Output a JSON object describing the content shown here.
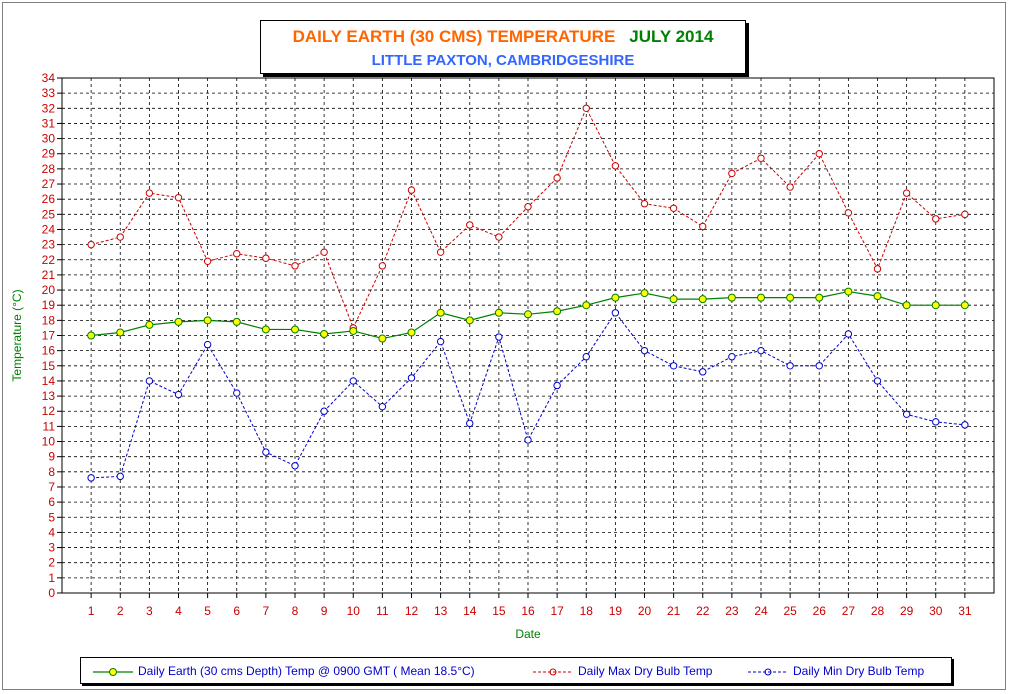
{
  "title": {
    "main": "DAILY EARTH (30 CMS) TEMPERATURE",
    "date": "JULY 2014",
    "subtitle": "LITTLE PAXTON, CAMBRIDGESHIRE"
  },
  "colors": {
    "title_main": "#ff6600",
    "title_date": "#008000",
    "subtitle": "#3366ff",
    "axis_text": "#cc0000",
    "axis_title": "#008000",
    "earth_line": "#008000",
    "earth_marker": "#ffff00",
    "max_line": "#cc0000",
    "min_line": "#0000cc"
  },
  "legend": {
    "earth": "Daily Earth (30 cms Depth) Temp @ 0900 GMT ( Mean 18.5°C)",
    "max": "Daily Max Dry Bulb Temp",
    "min": "Daily Min Dry Bulb Temp"
  },
  "chart_data": {
    "type": "line",
    "xlabel": "Date",
    "ylabel": "Temperature (°C)",
    "ylim": [
      0,
      34
    ],
    "xlim": [
      0,
      32
    ],
    "grid": true,
    "legend_position": "bottom",
    "x": [
      1,
      2,
      3,
      4,
      5,
      6,
      7,
      8,
      9,
      10,
      11,
      12,
      13,
      14,
      15,
      16,
      17,
      18,
      19,
      20,
      21,
      22,
      23,
      24,
      25,
      26,
      27,
      28,
      29,
      30,
      31
    ],
    "series": [
      {
        "name": "Daily Earth (30 cms Depth) Temp @ 0900 GMT ( Mean 18.5°C)",
        "key": "earth",
        "values": [
          17.0,
          17.2,
          17.7,
          17.9,
          18.0,
          17.9,
          17.4,
          17.4,
          17.1,
          17.3,
          16.8,
          17.2,
          18.5,
          18.0,
          18.5,
          18.4,
          18.6,
          19.0,
          19.5,
          19.8,
          19.4,
          19.4,
          19.5,
          19.5,
          19.5,
          19.5,
          19.9,
          19.6,
          19.0,
          19.0,
          19.0
        ]
      },
      {
        "name": "Daily Max Dry Bulb Temp",
        "key": "max",
        "values": [
          23.0,
          23.5,
          26.4,
          26.1,
          21.9,
          22.4,
          22.1,
          21.6,
          22.5,
          17.5,
          21.6,
          26.6,
          22.5,
          24.3,
          23.5,
          25.5,
          27.4,
          32.0,
          28.2,
          25.7,
          25.4,
          24.2,
          27.7,
          28.7,
          26.8,
          29.0,
          25.1,
          21.4,
          26.4,
          24.7,
          25.0
        ]
      },
      {
        "name": "Daily Min Dry Bulb Temp",
        "key": "min",
        "values": [
          7.6,
          7.7,
          14.0,
          13.1,
          16.4,
          13.2,
          9.3,
          8.4,
          12.0,
          14.0,
          12.3,
          14.2,
          16.6,
          11.2,
          16.9,
          10.1,
          13.7,
          15.6,
          18.5,
          16.0,
          15.0,
          14.6,
          15.6,
          16.0,
          15.0,
          15.0,
          17.1,
          14.0,
          11.8,
          11.3,
          11.1
        ]
      }
    ]
  }
}
